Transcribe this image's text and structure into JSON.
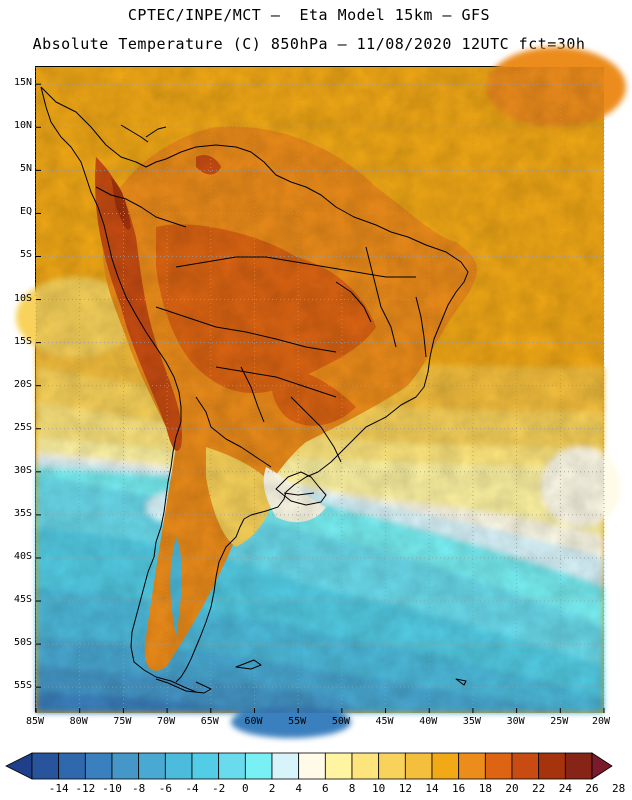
{
  "header": {
    "line1": "CPTEC/INPE/MCT –  Eta Model 15km – GFS",
    "line2": "Absolute Temperature (C) 850hPa – 11/08/2020 12UTC fct=30h"
  },
  "map": {
    "lon_range": [
      -85,
      -20
    ],
    "lat_range": [
      -58,
      17
    ],
    "lat_labels": [
      "15N",
      "10N",
      "5N",
      "EQ",
      "5S",
      "10S",
      "15S",
      "20S",
      "25S",
      "30S",
      "35S",
      "40S",
      "45S",
      "50S",
      "55S"
    ],
    "lon_labels": [
      "85W",
      "80W",
      "75W",
      "70W",
      "65W",
      "60W",
      "55W",
      "50W",
      "45W",
      "40W",
      "35W",
      "30W",
      "25W",
      "20W"
    ]
  },
  "colorbar": {
    "labels": [
      "-14",
      "-12",
      "-10",
      "-8",
      "-6",
      "-4",
      "-2",
      "0",
      "2",
      "4",
      "6",
      "8",
      "10",
      "12",
      "14",
      "16",
      "18",
      "20",
      "22",
      "24",
      "26",
      "28"
    ],
    "colors": [
      "#1f3f8a",
      "#28549c",
      "#2f68ac",
      "#3a80be",
      "#4597c8",
      "#4aa9d3",
      "#4dbbdc",
      "#52cde5",
      "#6adbec",
      "#78f0f4",
      "#d8f4fb",
      "#fffbe8",
      "#fff4a2",
      "#fde47c",
      "#f8d25a",
      "#f4bf3c",
      "#f2a916",
      "#ec8c1a",
      "#dc6412",
      "#c84c12",
      "#a5330d",
      "#872418",
      "#7a1a2a"
    ]
  }
}
